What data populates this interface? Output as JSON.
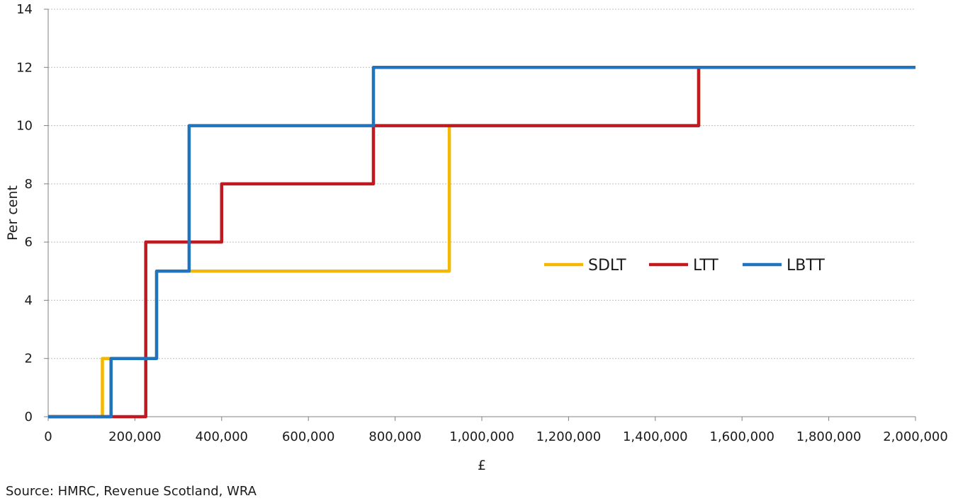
{
  "chart_data": {
    "type": "line",
    "step": true,
    "xlabel": "£",
    "ylabel": "Per cent",
    "xlim": [
      0,
      2000000
    ],
    "ylim": [
      0,
      14
    ],
    "x_ticks": [
      "0",
      "200,000",
      "400,000",
      "600,000",
      "800,000",
      "1,000,000",
      "1,200,000",
      "1,400,000",
      "1,600,000",
      "1,800,000",
      "2,000,000"
    ],
    "y_ticks": [
      "0",
      "2",
      "4",
      "6",
      "8",
      "10",
      "12",
      "14"
    ],
    "grid": "horizontal dotted",
    "legend_position": "center-right",
    "series": [
      {
        "name": "SDLT",
        "color": "#f5b800",
        "points": [
          [
            0,
            0
          ],
          [
            125000,
            0
          ],
          [
            125000,
            2
          ],
          [
            250000,
            2
          ],
          [
            250000,
            5
          ],
          [
            925000,
            5
          ],
          [
            925000,
            10
          ],
          [
            1500000,
            10
          ],
          [
            1500000,
            12
          ],
          [
            2000000,
            12
          ]
        ]
      },
      {
        "name": "LTT",
        "color": "#c0191f",
        "points": [
          [
            0,
            0
          ],
          [
            225000,
            0
          ],
          [
            225000,
            6
          ],
          [
            400000,
            6
          ],
          [
            400000,
            8
          ],
          [
            750000,
            8
          ],
          [
            750000,
            10
          ],
          [
            1500000,
            10
          ],
          [
            1500000,
            12
          ],
          [
            2000000,
            12
          ]
        ]
      },
      {
        "name": "LBTT",
        "color": "#1f74bd",
        "points": [
          [
            0,
            0
          ],
          [
            145000,
            0
          ],
          [
            145000,
            2
          ],
          [
            250000,
            2
          ],
          [
            250000,
            5
          ],
          [
            325000,
            5
          ],
          [
            325000,
            10
          ],
          [
            750000,
            10
          ],
          [
            750000,
            12
          ],
          [
            2000000,
            12
          ]
        ]
      }
    ]
  },
  "source": "Source: HMRC, Revenue Scotland, WRA"
}
